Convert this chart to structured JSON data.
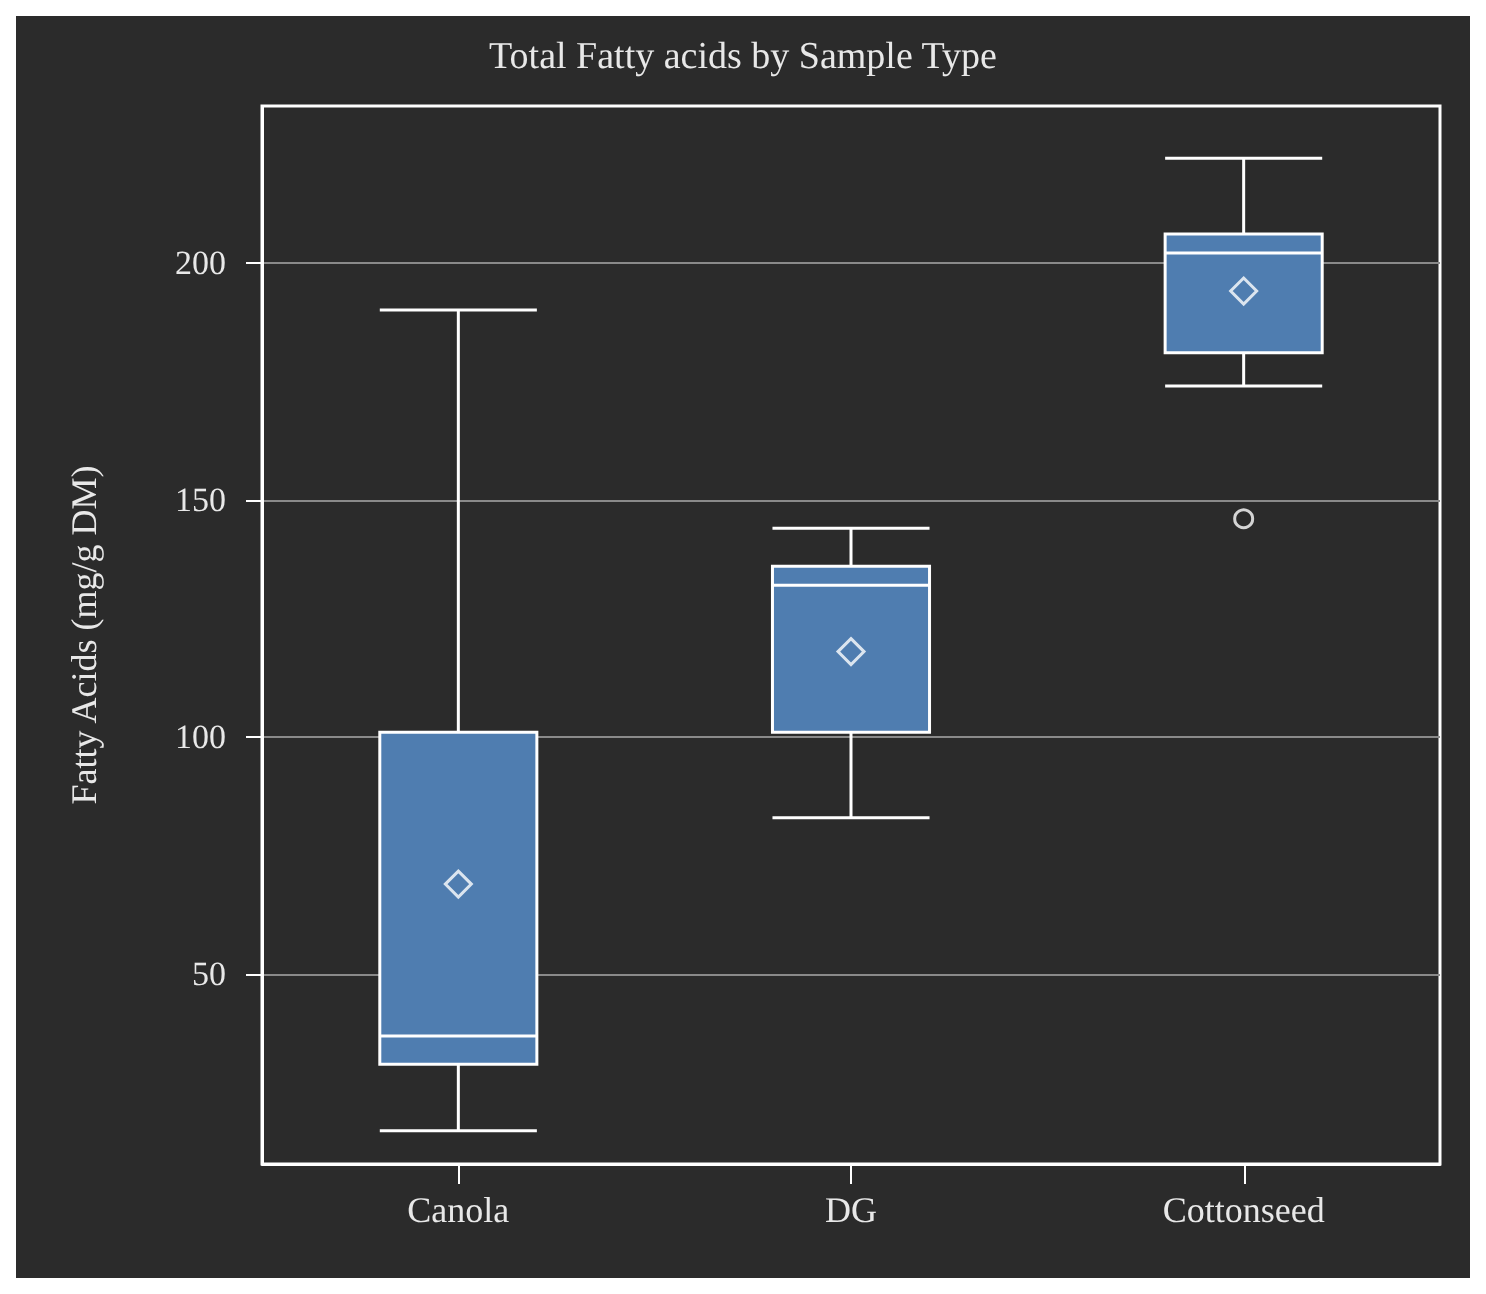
{
  "chart_data": {
    "type": "box",
    "title": "Total Fatty acids by Sample Type",
    "ylabel": "Fatty Acids (mg/g DM)",
    "categories": [
      "Canola",
      "DG",
      "Cottonseed"
    ],
    "color": "#4f7db0",
    "boxes": [
      {
        "low": 17,
        "q1": 31,
        "median": 37,
        "q3": 101,
        "high": 190,
        "mean": 69
      },
      {
        "low": 83,
        "q1": 101,
        "median": 132,
        "q3": 136,
        "high": 144,
        "mean": 118
      },
      {
        "low": 174,
        "q1": 181,
        "median": 202,
        "q3": 206,
        "high": 222,
        "mean": 194,
        "outliers": [
          146
        ]
      }
    ],
    "ylim": [
      10,
      233
    ],
    "yticks": [
      50,
      100,
      150,
      200
    ],
    "grid": "y"
  }
}
